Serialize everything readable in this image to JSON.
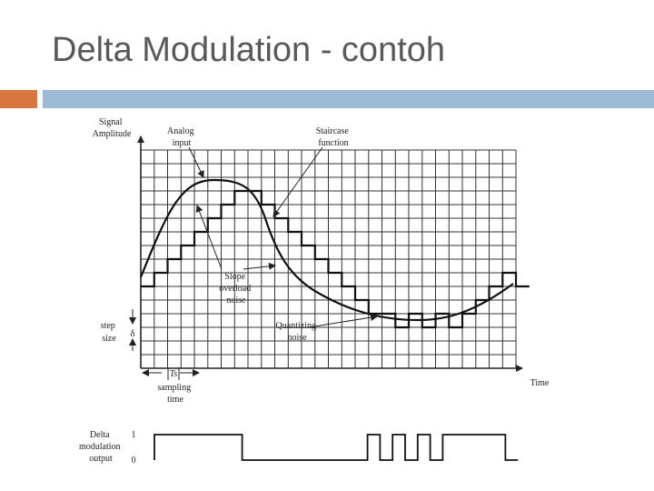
{
  "slide": {
    "title": "Delta Modulation - contoh"
  },
  "diagram": {
    "y_axis_label_line1": "Signal",
    "y_axis_label_line2": "Amplitude",
    "analog_label_line1": "Analog",
    "analog_label_line2": "input",
    "staircase_label_line1": "Staircase",
    "staircase_label_line2": "function",
    "slope_label_line1": "Slope",
    "slope_label_line2": "overload",
    "slope_label_line3": "noise",
    "quant_label_line1": "Quantizing",
    "quant_label_line2": "noise",
    "step_label_line1": "step",
    "step_label_line2": "size",
    "delta_symbol": "δ",
    "ts_symbol": "Ts",
    "sampling_label_line1": "sampling",
    "sampling_label_line2": "time",
    "x_axis_label": "Time",
    "output_label_line1": "Delta",
    "output_label_line2": "modulation",
    "output_label_line3": "output",
    "output_high": "1",
    "output_low": "0",
    "output_bits": [
      1,
      1,
      1,
      1,
      1,
      1,
      1,
      0,
      0,
      0,
      0,
      0,
      0,
      0,
      0,
      0,
      0,
      1,
      0,
      1,
      0,
      1,
      0,
      1,
      1,
      1,
      1,
      1,
      0
    ],
    "staircase_levels": [
      0,
      1,
      2,
      3,
      4,
      5,
      6,
      7,
      7,
      6,
      5,
      4,
      3,
      2,
      1,
      0,
      -1,
      -2,
      -2,
      -3,
      -2,
      -3,
      -2,
      -3,
      -2,
      -1,
      0,
      1,
      0
    ]
  }
}
